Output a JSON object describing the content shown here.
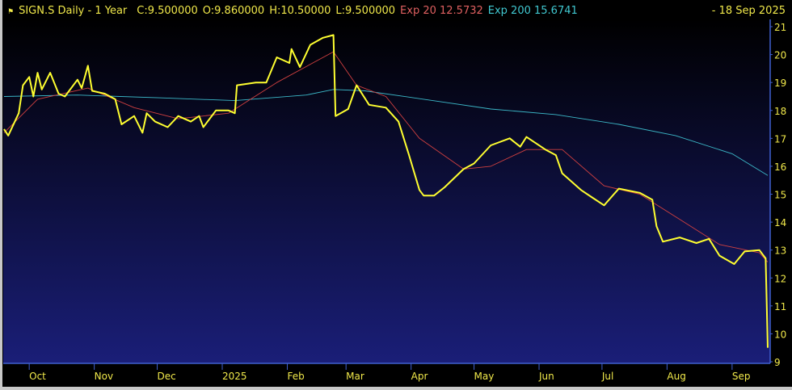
{
  "header": {
    "flag_icon": "flag-icon",
    "symbol": "SIGN.S Daily -  1 Year",
    "close": "C:9.500000",
    "open": "O:9.860000",
    "high": "H:10.50000",
    "low": "L:9.500000",
    "exp20": "Exp 20 12.5732",
    "exp200": "Exp 200 15.6741",
    "date": "-  18 Sep 2025"
  },
  "colors": {
    "price": "#ffff30",
    "exp20": "#d04040",
    "exp200": "#3cb8c8",
    "axis": "#4060d0",
    "text": "#f0e84a",
    "bg_top": "#000000",
    "bg_bottom": "#1a1e78"
  },
  "chart_data": {
    "type": "line",
    "ylim": [
      9,
      21
    ],
    "xlim": [
      "2024-09-19",
      "2025-09-18"
    ],
    "yticks": [
      9,
      10,
      11,
      12,
      13,
      14,
      15,
      16,
      17,
      18,
      19,
      20,
      21
    ],
    "xticks": [
      {
        "date": "2024-10-01",
        "label": "Oct"
      },
      {
        "date": "2024-11-01",
        "label": "Nov"
      },
      {
        "date": "2024-12-01",
        "label": "Dec"
      },
      {
        "date": "2025-01-01",
        "label": "2025"
      },
      {
        "date": "2025-02-01",
        "label": "Feb"
      },
      {
        "date": "2025-03-01",
        "label": "Mar"
      },
      {
        "date": "2025-04-01",
        "label": "Apr"
      },
      {
        "date": "2025-05-01",
        "label": "May"
      },
      {
        "date": "2025-06-01",
        "label": "Jun"
      },
      {
        "date": "2025-07-01",
        "label": "Jul"
      },
      {
        "date": "2025-08-01",
        "label": "Aug"
      },
      {
        "date": "2025-09-01",
        "label": "Sep"
      }
    ],
    "series": [
      {
        "name": "SIGN.S",
        "points": [
          [
            "2024-09-19",
            17.33
          ],
          [
            "2024-09-21",
            17.1
          ],
          [
            "2024-09-26",
            17.9
          ],
          [
            "2024-09-28",
            18.9
          ],
          [
            "2024-10-01",
            19.2
          ],
          [
            "2024-10-03",
            18.5
          ],
          [
            "2024-10-05",
            19.35
          ],
          [
            "2024-10-07",
            18.75
          ],
          [
            "2024-10-11",
            19.35
          ],
          [
            "2024-10-15",
            18.6
          ],
          [
            "2024-10-18",
            18.5
          ],
          [
            "2024-10-24",
            19.1
          ],
          [
            "2024-10-26",
            18.8
          ],
          [
            "2024-10-29",
            19.6
          ],
          [
            "2024-10-31",
            18.7
          ],
          [
            "2024-11-06",
            18.6
          ],
          [
            "2024-11-11",
            18.4
          ],
          [
            "2024-11-14",
            17.5
          ],
          [
            "2024-11-20",
            17.8
          ],
          [
            "2024-11-24",
            17.2
          ],
          [
            "2024-11-26",
            17.9
          ],
          [
            "2024-11-30",
            17.6
          ],
          [
            "2024-12-06",
            17.4
          ],
          [
            "2024-12-11",
            17.8
          ],
          [
            "2024-12-17",
            17.6
          ],
          [
            "2024-12-21",
            17.8
          ],
          [
            "2024-12-23",
            17.4
          ],
          [
            "2024-12-29",
            18.0
          ],
          [
            "2025-01-04",
            18.0
          ],
          [
            "2025-01-07",
            17.9
          ],
          [
            "2025-01-08",
            18.9
          ],
          [
            "2025-01-17",
            19.0
          ],
          [
            "2025-01-22",
            19.0
          ],
          [
            "2025-01-27",
            19.9
          ],
          [
            "2025-02-02",
            19.7
          ],
          [
            "2025-02-03",
            20.2
          ],
          [
            "2025-02-07",
            19.55
          ],
          [
            "2025-02-12",
            20.35
          ],
          [
            "2025-02-18",
            20.6
          ],
          [
            "2025-02-23",
            20.7
          ],
          [
            "2025-02-24",
            17.8
          ],
          [
            "2025-03-02",
            18.05
          ],
          [
            "2025-03-06",
            18.9
          ],
          [
            "2025-03-12",
            18.2
          ],
          [
            "2025-03-20",
            18.1
          ],
          [
            "2025-03-26",
            17.6
          ],
          [
            "2025-03-31",
            16.4
          ],
          [
            "2025-04-05",
            15.15
          ],
          [
            "2025-04-07",
            14.95
          ],
          [
            "2025-04-12",
            14.95
          ],
          [
            "2025-04-17",
            15.25
          ],
          [
            "2025-04-26",
            15.9
          ],
          [
            "2025-05-01",
            16.1
          ],
          [
            "2025-05-09",
            16.75
          ],
          [
            "2025-05-18",
            17.0
          ],
          [
            "2025-05-23",
            16.7
          ],
          [
            "2025-05-26",
            17.05
          ],
          [
            "2025-06-04",
            16.6
          ],
          [
            "2025-06-09",
            16.4
          ],
          [
            "2025-06-12",
            15.75
          ],
          [
            "2025-06-21",
            15.15
          ],
          [
            "2025-06-26",
            14.9
          ],
          [
            "2025-07-02",
            14.6
          ],
          [
            "2025-07-09",
            15.2
          ],
          [
            "2025-07-19",
            15.05
          ],
          [
            "2025-07-25",
            14.8
          ],
          [
            "2025-07-27",
            13.85
          ],
          [
            "2025-07-30",
            13.3
          ],
          [
            "2025-08-07",
            13.45
          ],
          [
            "2025-08-15",
            13.25
          ],
          [
            "2025-08-21",
            13.4
          ],
          [
            "2025-08-26",
            12.8
          ],
          [
            "2025-09-02",
            12.5
          ],
          [
            "2025-09-07",
            12.95
          ],
          [
            "2025-09-14",
            13.0
          ],
          [
            "2025-09-17",
            12.7
          ],
          [
            "2025-09-18",
            9.5
          ]
        ]
      },
      {
        "name": "Exp 20",
        "points": [
          [
            "2024-09-19",
            17.2
          ],
          [
            "2024-10-05",
            18.4
          ],
          [
            "2024-10-29",
            18.8
          ],
          [
            "2024-11-20",
            18.1
          ],
          [
            "2024-12-11",
            17.7
          ],
          [
            "2025-01-04",
            17.9
          ],
          [
            "2025-01-27",
            19.0
          ],
          [
            "2025-02-23",
            20.1
          ],
          [
            "2025-03-06",
            18.9
          ],
          [
            "2025-03-20",
            18.5
          ],
          [
            "2025-04-05",
            17.0
          ],
          [
            "2025-04-26",
            15.9
          ],
          [
            "2025-05-09",
            16.0
          ],
          [
            "2025-05-26",
            16.6
          ],
          [
            "2025-06-12",
            16.6
          ],
          [
            "2025-07-02",
            15.3
          ],
          [
            "2025-07-19",
            15.0
          ],
          [
            "2025-08-07",
            14.1
          ],
          [
            "2025-08-26",
            13.2
          ],
          [
            "2025-09-14",
            12.9
          ],
          [
            "2025-09-18",
            12.57
          ]
        ]
      },
      {
        "name": "Exp 200",
        "points": [
          [
            "2024-09-19",
            18.5
          ],
          [
            "2024-10-24",
            18.55
          ],
          [
            "2024-12-03",
            18.45
          ],
          [
            "2025-01-07",
            18.35
          ],
          [
            "2025-02-10",
            18.55
          ],
          [
            "2025-02-23",
            18.75
          ],
          [
            "2025-03-10",
            18.7
          ],
          [
            "2025-04-07",
            18.4
          ],
          [
            "2025-05-09",
            18.05
          ],
          [
            "2025-06-09",
            17.85
          ],
          [
            "2025-07-09",
            17.5
          ],
          [
            "2025-08-05",
            17.1
          ],
          [
            "2025-09-01",
            16.45
          ],
          [
            "2025-09-18",
            15.67
          ]
        ]
      }
    ]
  }
}
